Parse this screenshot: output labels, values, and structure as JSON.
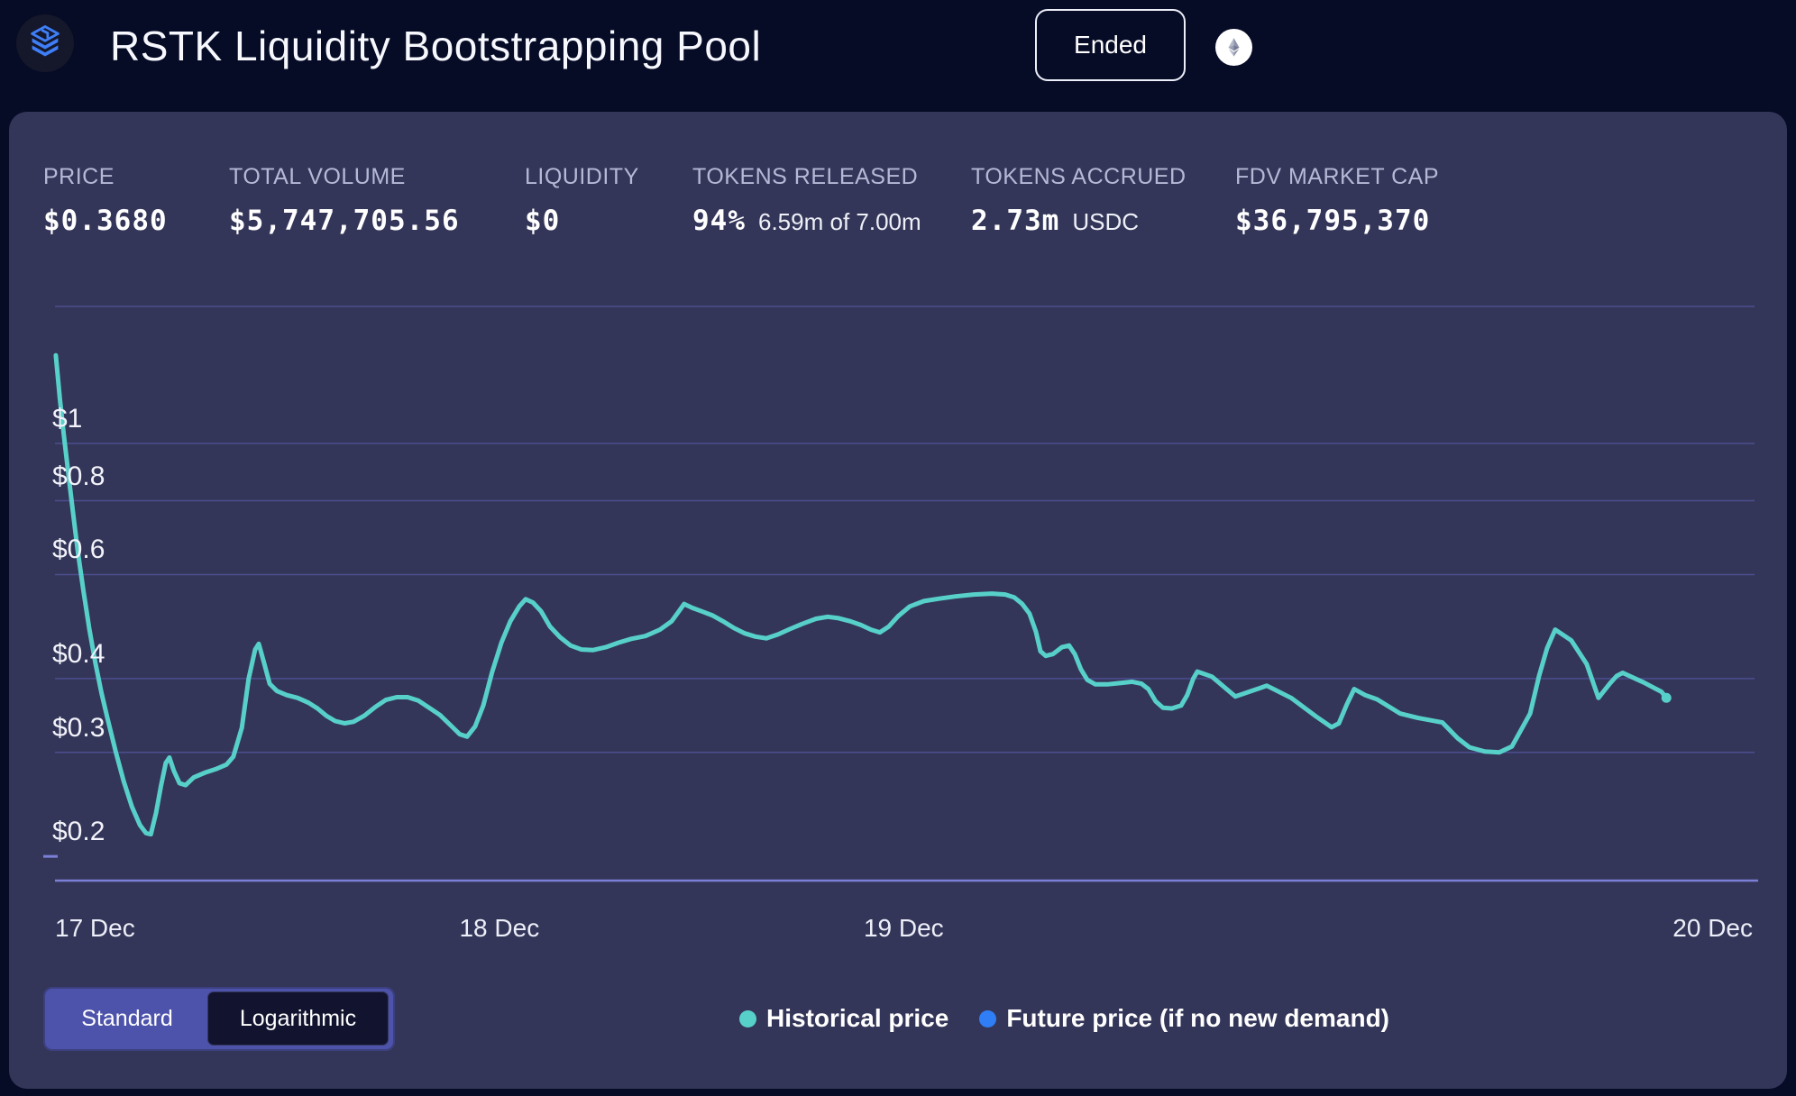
{
  "header": {
    "title": "RSTK Liquidity Bootstrapping Pool",
    "status_badge": "Ended",
    "logo_icon": "layers-stack-icon",
    "chain_icon": "ethereum-icon"
  },
  "stats": [
    {
      "label": "PRICE",
      "value": "$0.3680"
    },
    {
      "label": "TOTAL VOLUME",
      "value": "$5,747,705.56"
    },
    {
      "label": "LIQUIDITY",
      "value": "$0"
    },
    {
      "label": "TOKENS RELEASED",
      "value": "94%",
      "sub": "6.59m of 7.00m"
    },
    {
      "label": "TOKENS ACCRUED",
      "value": "2.73m",
      "sub": "USDC"
    },
    {
      "label": "FDV MARKET CAP",
      "value": "$36,795,370"
    }
  ],
  "controls": {
    "scale_options": [
      "Standard",
      "Logarithmic"
    ],
    "selected_scale": "Logarithmic"
  },
  "legend": [
    {
      "label": "Historical price",
      "color": "#58D0CA"
    },
    {
      "label": "Future price (if no new demand)",
      "color": "#2F7EF6"
    }
  ],
  "colors": {
    "page_bg": "#060B26",
    "panel_bg": "#343659",
    "grid": "#4B4E8E",
    "axis": "#7B7FD6",
    "historical_line": "#58D0CA",
    "future_line": "#2F7EF6",
    "logo_blue": "#3E7EF7"
  },
  "chart_data": {
    "type": "line",
    "yscale": "log",
    "grid": true,
    "legend_position": "bottom",
    "ylim": [
      0.182,
      1.706
    ],
    "xlim_days": [
      0,
      4.203
    ],
    "y_ticks": [
      {
        "label": "$1",
        "value": 1.0,
        "full_line": true
      },
      {
        "label": "$0.8",
        "value": 0.8,
        "full_line": true
      },
      {
        "label": "$0.6",
        "value": 0.6,
        "full_line": true
      },
      {
        "label": "$0.4",
        "value": 0.4,
        "full_line": true
      },
      {
        "label": "$0.3",
        "value": 0.3,
        "full_line": true
      },
      {
        "label": "$0.2",
        "value": 0.2,
        "full_line": false
      }
    ],
    "x_ticks": [
      {
        "label": "17 Dec",
        "day": 0,
        "align": "left"
      },
      {
        "label": "18 Dec",
        "day": 1,
        "align": "left"
      },
      {
        "label": "19 Dec",
        "day": 2,
        "align": "left"
      },
      {
        "label": "20 Dec",
        "day": 3,
        "align": "right-edge"
      }
    ],
    "series": [
      {
        "name": "Historical price",
        "color": "#58D0CA",
        "unit": "USD",
        "x_unit": "days since 17 Dec",
        "points": [
          [
            0.002,
            1.41
          ],
          [
            0.012,
            1.19
          ],
          [
            0.022,
            1.03
          ],
          [
            0.032,
            0.9
          ],
          [
            0.044,
            0.77
          ],
          [
            0.056,
            0.66
          ],
          [
            0.07,
            0.565
          ],
          [
            0.085,
            0.485
          ],
          [
            0.1,
            0.425
          ],
          [
            0.115,
            0.378
          ],
          [
            0.13,
            0.342
          ],
          [
            0.15,
            0.301
          ],
          [
            0.17,
            0.268
          ],
          [
            0.19,
            0.243
          ],
          [
            0.21,
            0.226
          ],
          [
            0.225,
            0.219
          ],
          [
            0.237,
            0.218
          ],
          [
            0.25,
            0.237
          ],
          [
            0.262,
            0.263
          ],
          [
            0.274,
            0.288
          ],
          [
            0.283,
            0.294
          ],
          [
            0.294,
            0.279
          ],
          [
            0.308,
            0.266
          ],
          [
            0.323,
            0.264
          ],
          [
            0.343,
            0.272
          ],
          [
            0.37,
            0.277
          ],
          [
            0.397,
            0.281
          ],
          [
            0.424,
            0.286
          ],
          [
            0.441,
            0.295
          ],
          [
            0.462,
            0.33
          ],
          [
            0.479,
            0.4
          ],
          [
            0.495,
            0.448
          ],
          [
            0.504,
            0.458
          ],
          [
            0.517,
            0.425
          ],
          [
            0.531,
            0.392
          ],
          [
            0.549,
            0.381
          ],
          [
            0.573,
            0.375
          ],
          [
            0.6,
            0.371
          ],
          [
            0.627,
            0.364
          ],
          [
            0.649,
            0.356
          ],
          [
            0.671,
            0.346
          ],
          [
            0.693,
            0.339
          ],
          [
            0.716,
            0.336
          ],
          [
            0.738,
            0.338
          ],
          [
            0.765,
            0.346
          ],
          [
            0.792,
            0.358
          ],
          [
            0.818,
            0.368
          ],
          [
            0.845,
            0.372
          ],
          [
            0.872,
            0.372
          ],
          [
            0.899,
            0.367
          ],
          [
            0.925,
            0.357
          ],
          [
            0.952,
            0.347
          ],
          [
            0.979,
            0.333
          ],
          [
            1.001,
            0.322
          ],
          [
            1.019,
            0.319
          ],
          [
            1.039,
            0.332
          ],
          [
            1.059,
            0.36
          ],
          [
            1.081,
            0.41
          ],
          [
            1.104,
            0.46
          ],
          [
            1.126,
            0.5
          ],
          [
            1.148,
            0.53
          ],
          [
            1.164,
            0.545
          ],
          [
            1.182,
            0.538
          ],
          [
            1.202,
            0.52
          ],
          [
            1.224,
            0.49
          ],
          [
            1.249,
            0.47
          ],
          [
            1.275,
            0.455
          ],
          [
            1.302,
            0.448
          ],
          [
            1.331,
            0.447
          ],
          [
            1.362,
            0.452
          ],
          [
            1.393,
            0.46
          ],
          [
            1.425,
            0.467
          ],
          [
            1.46,
            0.472
          ],
          [
            1.496,
            0.484
          ],
          [
            1.525,
            0.5
          ],
          [
            1.543,
            0.52
          ],
          [
            1.556,
            0.535
          ],
          [
            1.576,
            0.527
          ],
          [
            1.599,
            0.52
          ],
          [
            1.625,
            0.512
          ],
          [
            1.652,
            0.5
          ],
          [
            1.679,
            0.487
          ],
          [
            1.706,
            0.477
          ],
          [
            1.732,
            0.471
          ],
          [
            1.759,
            0.468
          ],
          [
            1.788,
            0.475
          ],
          [
            1.817,
            0.485
          ],
          [
            1.848,
            0.495
          ],
          [
            1.882,
            0.505
          ],
          [
            1.911,
            0.509
          ],
          [
            1.938,
            0.506
          ],
          [
            1.967,
            0.5
          ],
          [
            1.993,
            0.493
          ],
          [
            2.018,
            0.484
          ],
          [
            2.04,
            0.479
          ],
          [
            2.062,
            0.49
          ],
          [
            2.085,
            0.51
          ],
          [
            2.114,
            0.53
          ],
          [
            2.149,
            0.541
          ],
          [
            2.185,
            0.546
          ],
          [
            2.227,
            0.551
          ],
          [
            2.272,
            0.555
          ],
          [
            2.317,
            0.557
          ],
          [
            2.35,
            0.555
          ],
          [
            2.372,
            0.549
          ],
          [
            2.392,
            0.535
          ],
          [
            2.41,
            0.515
          ],
          [
            2.426,
            0.48
          ],
          [
            2.437,
            0.445
          ],
          [
            2.45,
            0.437
          ],
          [
            2.468,
            0.44
          ],
          [
            2.49,
            0.452
          ],
          [
            2.508,
            0.455
          ],
          [
            2.522,
            0.44
          ],
          [
            2.537,
            0.415
          ],
          [
            2.553,
            0.398
          ],
          [
            2.573,
            0.391
          ],
          [
            2.602,
            0.391
          ],
          [
            2.633,
            0.393
          ],
          [
            2.664,
            0.395
          ],
          [
            2.687,
            0.392
          ],
          [
            2.704,
            0.384
          ],
          [
            2.722,
            0.366
          ],
          [
            2.74,
            0.357
          ],
          [
            2.762,
            0.356
          ],
          [
            2.785,
            0.36
          ],
          [
            2.8,
            0.375
          ],
          [
            2.815,
            0.4
          ],
          [
            2.825,
            0.411
          ],
          [
            2.861,
            0.403
          ],
          [
            2.919,
            0.373
          ],
          [
            2.997,
            0.389
          ],
          [
            3.057,
            0.371
          ],
          [
            3.119,
            0.345
          ],
          [
            3.157,
            0.331
          ],
          [
            3.175,
            0.336
          ],
          [
            3.195,
            0.362
          ],
          [
            3.213,
            0.384
          ],
          [
            3.24,
            0.375
          ],
          [
            3.269,
            0.369
          ],
          [
            3.327,
            0.349
          ],
          [
            3.371,
            0.343
          ],
          [
            3.431,
            0.337
          ],
          [
            3.469,
            0.317
          ],
          [
            3.498,
            0.306
          ],
          [
            3.536,
            0.301
          ],
          [
            3.572,
            0.3
          ],
          [
            3.603,
            0.307
          ],
          [
            3.648,
            0.349
          ],
          [
            3.67,
            0.404
          ],
          [
            3.69,
            0.45
          ],
          [
            3.71,
            0.484
          ],
          [
            3.75,
            0.464
          ],
          [
            3.788,
            0.423
          ],
          [
            3.817,
            0.371
          ],
          [
            3.846,
            0.393
          ],
          [
            3.862,
            0.404
          ],
          [
            3.877,
            0.409
          ],
          [
            3.929,
            0.394
          ],
          [
            3.973,
            0.38
          ],
          [
            3.985,
            0.371
          ]
        ]
      }
    ]
  }
}
